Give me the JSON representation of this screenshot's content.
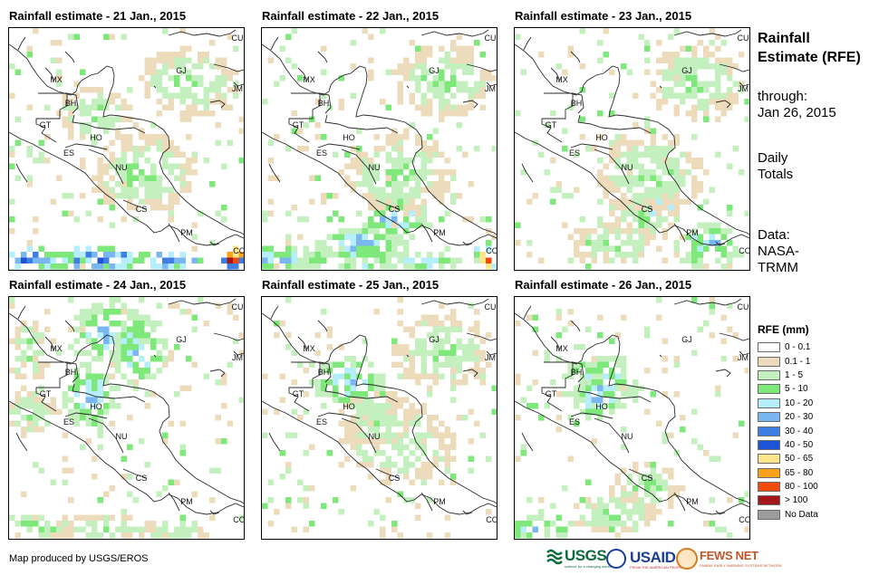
{
  "panels": [
    {
      "title": "Rainfall estimate - 21 Jan., 2015",
      "seed": 21,
      "rain": [
        {
          "region": "south-band",
          "intensity": "heavy"
        },
        {
          "region": "colombia",
          "intensity": "extreme"
        },
        {
          "region": "caribbean",
          "intensity": "light"
        },
        {
          "region": "yucatan",
          "intensity": "light"
        }
      ]
    },
    {
      "title": "Rainfall estimate - 22 Jan., 2015",
      "seed": 22,
      "rain": [
        {
          "region": "south-band",
          "intensity": "moderate"
        },
        {
          "region": "costa-rica",
          "intensity": "moderate"
        },
        {
          "region": "colombia",
          "intensity": "extreme"
        },
        {
          "region": "caribbean",
          "intensity": "light"
        }
      ]
    },
    {
      "title": "Rainfall estimate - 23 Jan., 2015",
      "seed": 23,
      "rain": [
        {
          "region": "panama",
          "intensity": "moderate"
        },
        {
          "region": "costa-rica",
          "intensity": "light"
        },
        {
          "region": "caribbean",
          "intensity": "light"
        }
      ]
    },
    {
      "title": "Rainfall estimate - 24 Jan., 2015",
      "seed": 24,
      "rain": [
        {
          "region": "gulf-front",
          "intensity": "moderate"
        },
        {
          "region": "west",
          "intensity": "light"
        },
        {
          "region": "south-band",
          "intensity": "light"
        }
      ]
    },
    {
      "title": "Rainfall estimate - 25 Jan., 2015",
      "seed": 25,
      "rain": [
        {
          "region": "yucatan",
          "intensity": "moderate"
        },
        {
          "region": "caribbean",
          "intensity": "light"
        },
        {
          "region": "honduras",
          "intensity": "light"
        }
      ]
    },
    {
      "title": "Rainfall estimate - 26 Jan., 2015",
      "seed": 26,
      "rain": [
        {
          "region": "yucatan",
          "intensity": "moderate"
        },
        {
          "region": "costa-rica",
          "intensity": "light"
        },
        {
          "region": "southwest",
          "intensity": "moderate"
        }
      ]
    }
  ],
  "country_labels": [
    "CU",
    "MX",
    "GJ",
    "JM",
    "BH",
    "GT",
    "HO",
    "ES",
    "NU",
    "CS",
    "PM",
    "CO"
  ],
  "sidebar": {
    "title": "Rainfall Estimate (RFE)",
    "through_label": "through:",
    "through_date": "Jan 26, 2015",
    "period": "Daily Totals",
    "data_source": "Data: NASA-TRMM"
  },
  "legend": {
    "title": "RFE (mm)",
    "items": [
      {
        "label": "0 - 0.1",
        "color": "#ffffff"
      },
      {
        "label": "0.1 - 1",
        "color": "#ecdcbc"
      },
      {
        "label": "1 - 5",
        "color": "#c4f0bf"
      },
      {
        "label": "5 - 10",
        "color": "#7ee87a"
      },
      {
        "label": "10 - 20",
        "color": "#b6eefb"
      },
      {
        "label": "20 - 30",
        "color": "#7ab6ef"
      },
      {
        "label": "30 - 40",
        "color": "#3f7fe4"
      },
      {
        "label": "40 - 50",
        "color": "#1d54d6"
      },
      {
        "label": "50 - 65",
        "color": "#fde58a"
      },
      {
        "label": "65 - 80",
        "color": "#f9a11b"
      },
      {
        "label": "80 - 100",
        "color": "#f14a0c"
      },
      {
        "label": "> 100",
        "color": "#a3161a"
      },
      {
        "label": "No Data",
        "color": "#9c9c9c"
      }
    ]
  },
  "footer": {
    "credit": "Map produced by USGS/EROS",
    "logos": {
      "usgs": "USGS",
      "usgs_tagline": "science for a changing world",
      "usaid": "USAID",
      "usaid_tagline": "FROM THE AMERICAN PEOPLE",
      "fews": "FEWS NET",
      "fews_tagline": "FAMINE EARLY WARNING SYSTEMS NETWORK"
    }
  }
}
